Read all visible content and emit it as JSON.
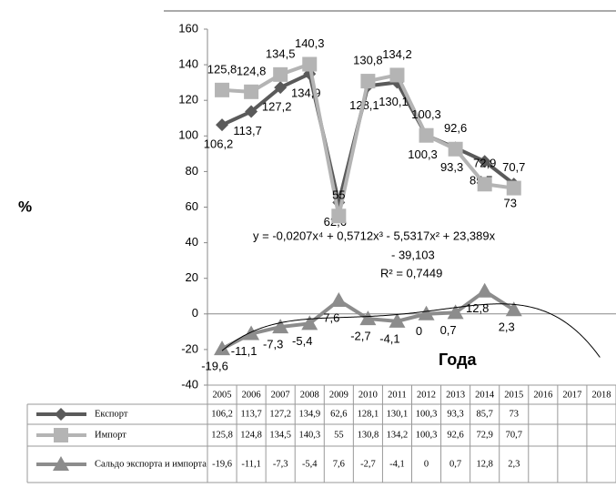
{
  "chart_data": {
    "type": "line",
    "ylabel": "%",
    "xlabel": "Года",
    "annotations": [
      "y = -0,0207x⁴ + 0,5712x³ - 5,5317x² + 23,389x",
      "- 39,103",
      "R² = 0,7449"
    ],
    "categories": [
      "2005",
      "2006",
      "2007",
      "2008",
      "2009",
      "2010",
      "2011",
      "2012",
      "2013",
      "2014",
      "2015",
      "2016",
      "2017",
      "2018"
    ],
    "ylim": [
      -40,
      160
    ],
    "yticks": [
      -40,
      -20,
      0,
      20,
      40,
      60,
      80,
      100,
      120,
      140,
      160
    ],
    "trendline": true,
    "series": [
      {
        "name": "Експорт",
        "color": "#5a5a5a",
        "marker": "diamond",
        "values": [
          106.2,
          113.7,
          127.2,
          134.9,
          62.6,
          128.1,
          130.1,
          100.3,
          93.3,
          85.7,
          73,
          null,
          null,
          null
        ],
        "value_labels": [
          "106,2",
          "113,7",
          "127,2",
          "134,9",
          "62,6",
          "128,1",
          "130,1",
          "100,3",
          "93,3",
          "85,7",
          "73",
          null,
          null,
          null
        ]
      },
      {
        "name": "Импорт",
        "color": "#b4b4b4",
        "marker": "square",
        "values": [
          125.8,
          124.8,
          134.5,
          140.3,
          55,
          130.8,
          134.2,
          100.3,
          92.6,
          72.9,
          70.7,
          null,
          null,
          null
        ],
        "value_labels": [
          "125,8",
          "124,8",
          "134,5",
          "140,3",
          "55",
          "130,8",
          "134,2",
          "100,3",
          "92,6",
          "72,9",
          "70,7",
          null,
          null,
          null
        ]
      },
      {
        "name": "Сальдо экспорта и импорта",
        "color": "#8c8c8c",
        "marker": "triangle",
        "values": [
          -19.6,
          -11.1,
          -7.3,
          -5.4,
          7.6,
          -2.7,
          -4.1,
          0,
          0.7,
          12.8,
          2.3,
          null,
          null,
          null
        ],
        "value_labels": [
          "-19,6",
          "-11,1",
          "-7,3",
          "-5,4",
          "7,6",
          "-2,7",
          "-4,1",
          "0",
          "0,7",
          "12,8",
          "2,3",
          null,
          null,
          null
        ]
      }
    ]
  }
}
